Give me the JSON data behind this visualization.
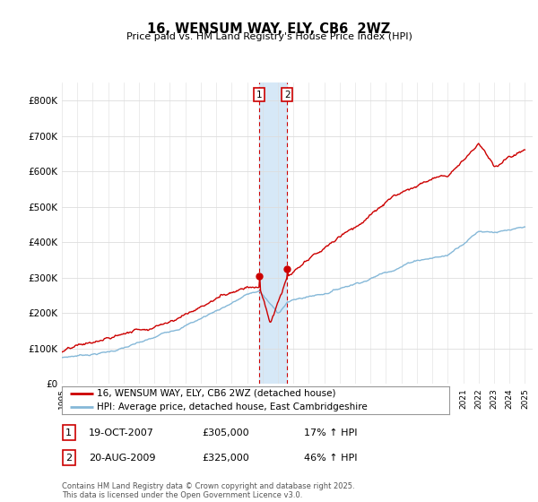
{
  "title": "16, WENSUM WAY, ELY, CB6  2WZ",
  "subtitle": "Price paid vs. HM Land Registry's House Price Index (HPI)",
  "ylim": [
    0,
    850000
  ],
  "yticks": [
    0,
    100000,
    200000,
    300000,
    400000,
    500000,
    600000,
    700000,
    800000
  ],
  "ytick_labels": [
    "£0",
    "£100K",
    "£200K",
    "£300K",
    "£400K",
    "£500K",
    "£600K",
    "£700K",
    "£800K"
  ],
  "legend_line1": "16, WENSUM WAY, ELY, CB6 2WZ (detached house)",
  "legend_line2": "HPI: Average price, detached house, East Cambridgeshire",
  "transaction1_label": "1",
  "transaction1_date": "19-OCT-2007",
  "transaction1_price": "£305,000",
  "transaction1_hpi": "17% ↑ HPI",
  "transaction2_label": "2",
  "transaction2_date": "20-AUG-2009",
  "transaction2_price": "£325,000",
  "transaction2_hpi": "46% ↑ HPI",
  "footer": "Contains HM Land Registry data © Crown copyright and database right 2025.\nThis data is licensed under the Open Government Licence v3.0.",
  "line_color_red": "#cc0000",
  "line_color_blue": "#85b8d8",
  "highlight_color": "#d6e8f7",
  "vline_color": "#cc0000",
  "grid_color": "#dddddd",
  "bg_color": "#ffffff",
  "transaction1_x": 2007.8,
  "transaction2_x": 2009.6
}
